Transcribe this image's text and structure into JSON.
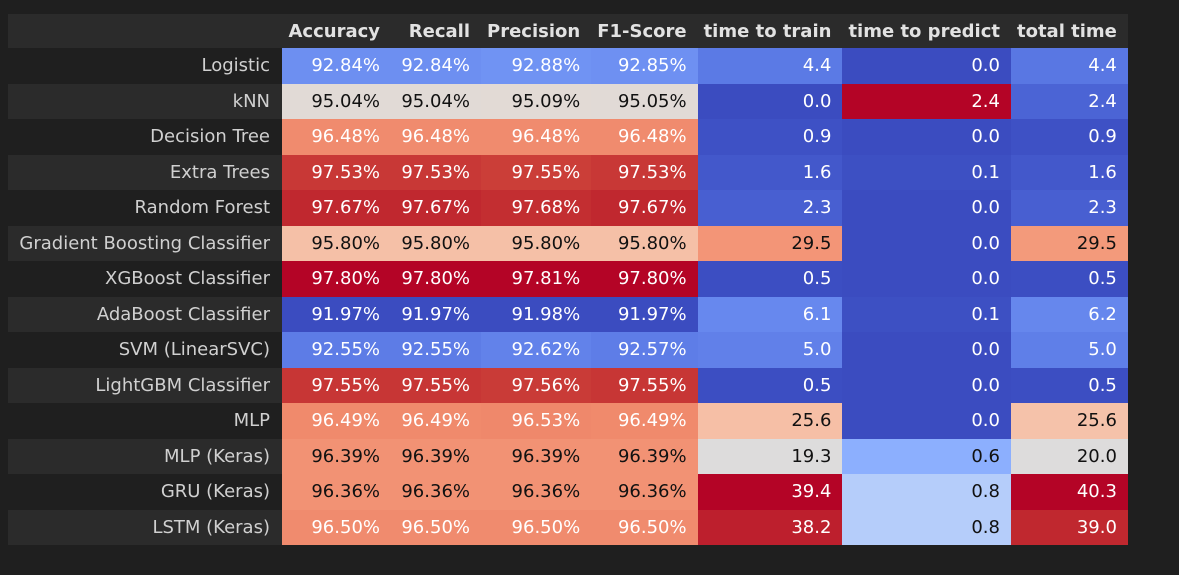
{
  "table": {
    "columns": [
      "Accuracy",
      "Recall",
      "Precision",
      "F1-Score",
      "time to train",
      "time to predict",
      "total time"
    ],
    "rows": [
      {
        "label": "Logistic",
        "cells": [
          {
            "text": "92.84%",
            "bg": "#6d8ff1",
            "fg": "dark"
          },
          {
            "text": "92.84%",
            "bg": "#6d8ff1",
            "fg": "dark"
          },
          {
            "text": "92.88%",
            "bg": "#7093f3",
            "fg": "dark"
          },
          {
            "text": "92.85%",
            "bg": "#6e90f2",
            "fg": "dark"
          },
          {
            "text": "4.4",
            "bg": "#5b7ae5",
            "fg": "dark"
          },
          {
            "text": "0.0",
            "bg": "#3b4cc0",
            "fg": "dark"
          },
          {
            "text": "4.4",
            "bg": "#5977e3",
            "fg": "dark"
          }
        ]
      },
      {
        "label": "kNN",
        "cells": [
          {
            "text": "95.04%",
            "bg": "#e1dad6",
            "fg": "light"
          },
          {
            "text": "95.04%",
            "bg": "#e1dad6",
            "fg": "light"
          },
          {
            "text": "95.09%",
            "bg": "#e2dad5",
            "fg": "light"
          },
          {
            "text": "95.05%",
            "bg": "#e1dad6",
            "fg": "light"
          },
          {
            "text": "0.0",
            "bg": "#3b4cc0",
            "fg": "dark"
          },
          {
            "text": "2.4",
            "bg": "#b40426",
            "fg": "dark"
          },
          {
            "text": "2.4",
            "bg": "#4b64d5",
            "fg": "dark"
          }
        ]
      },
      {
        "label": "Decision Tree",
        "cells": [
          {
            "text": "96.48%",
            "bg": "#f08b6e",
            "fg": "dark"
          },
          {
            "text": "96.48%",
            "bg": "#f08b6e",
            "fg": "dark"
          },
          {
            "text": "96.48%",
            "bg": "#f08b6e",
            "fg": "dark"
          },
          {
            "text": "96.48%",
            "bg": "#f08b6e",
            "fg": "dark"
          },
          {
            "text": "0.9",
            "bg": "#3e51c5",
            "fg": "dark"
          },
          {
            "text": "0.0",
            "bg": "#3b4cc0",
            "fg": "dark"
          },
          {
            "text": "0.9",
            "bg": "#3e51c5",
            "fg": "dark"
          }
        ]
      },
      {
        "label": "Extra Trees",
        "cells": [
          {
            "text": "97.53%",
            "bg": "#c83836",
            "fg": "dark"
          },
          {
            "text": "97.53%",
            "bg": "#c83836",
            "fg": "dark"
          },
          {
            "text": "97.55%",
            "bg": "#cb3e38",
            "fg": "dark"
          },
          {
            "text": "97.53%",
            "bg": "#c83836",
            "fg": "dark"
          },
          {
            "text": "1.6",
            "bg": "#4358cb",
            "fg": "dark"
          },
          {
            "text": "0.1",
            "bg": "#3d50c3",
            "fg": "dark"
          },
          {
            "text": "1.6",
            "bg": "#4358cb",
            "fg": "dark"
          }
        ]
      },
      {
        "label": "Random Forest",
        "cells": [
          {
            "text": "97.67%",
            "bg": "#c0282f",
            "fg": "dark"
          },
          {
            "text": "97.67%",
            "bg": "#c0282f",
            "fg": "dark"
          },
          {
            "text": "97.68%",
            "bg": "#c32e31",
            "fg": "dark"
          },
          {
            "text": "97.67%",
            "bg": "#c0282f",
            "fg": "dark"
          },
          {
            "text": "2.3",
            "bg": "#485fd1",
            "fg": "dark"
          },
          {
            "text": "0.0",
            "bg": "#3b4cc0",
            "fg": "dark"
          },
          {
            "text": "2.3",
            "bg": "#485fd1",
            "fg": "dark"
          }
        ]
      },
      {
        "label": "Gradient Boosting Classifier",
        "cells": [
          {
            "text": "95.80%",
            "bg": "#f5c0a7",
            "fg": "light"
          },
          {
            "text": "95.80%",
            "bg": "#f5c0a7",
            "fg": "light"
          },
          {
            "text": "95.80%",
            "bg": "#f5c0a7",
            "fg": "light"
          },
          {
            "text": "95.80%",
            "bg": "#f5c0a7",
            "fg": "light"
          },
          {
            "text": "29.5",
            "bg": "#f39577",
            "fg": "light"
          },
          {
            "text": "0.0",
            "bg": "#3b4cc0",
            "fg": "dark"
          },
          {
            "text": "29.5",
            "bg": "#f39a7b",
            "fg": "light"
          }
        ]
      },
      {
        "label": "XGBoost Classifier",
        "cells": [
          {
            "text": "97.80%",
            "bg": "#b40426",
            "fg": "dark"
          },
          {
            "text": "97.80%",
            "bg": "#b40426",
            "fg": "dark"
          },
          {
            "text": "97.81%",
            "bg": "#b40426",
            "fg": "dark"
          },
          {
            "text": "97.80%",
            "bg": "#b40426",
            "fg": "dark"
          },
          {
            "text": "0.5",
            "bg": "#3c4ec2",
            "fg": "dark"
          },
          {
            "text": "0.0",
            "bg": "#3b4cc0",
            "fg": "dark"
          },
          {
            "text": "0.5",
            "bg": "#3c4ec2",
            "fg": "dark"
          }
        ]
      },
      {
        "label": "AdaBoost Classifier",
        "cells": [
          {
            "text": "91.97%",
            "bg": "#3b4cc0",
            "fg": "dark"
          },
          {
            "text": "91.97%",
            "bg": "#3b4cc0",
            "fg": "dark"
          },
          {
            "text": "91.98%",
            "bg": "#3b4cc0",
            "fg": "dark"
          },
          {
            "text": "91.97%",
            "bg": "#3b4cc0",
            "fg": "dark"
          },
          {
            "text": "6.1",
            "bg": "#6788ee",
            "fg": "dark"
          },
          {
            "text": "0.1",
            "bg": "#3d50c3",
            "fg": "dark"
          },
          {
            "text": "6.2",
            "bg": "#6687ed",
            "fg": "dark"
          }
        ]
      },
      {
        "label": "SVM (LinearSVC)",
        "cells": [
          {
            "text": "92.55%",
            "bg": "#5d7ce6",
            "fg": "dark"
          },
          {
            "text": "92.55%",
            "bg": "#5d7ce6",
            "fg": "dark"
          },
          {
            "text": "92.62%",
            "bg": "#6282ea",
            "fg": "dark"
          },
          {
            "text": "92.57%",
            "bg": "#5e7de7",
            "fg": "dark"
          },
          {
            "text": "5.0",
            "bg": "#6180e9",
            "fg": "dark"
          },
          {
            "text": "0.0",
            "bg": "#3b4cc0",
            "fg": "dark"
          },
          {
            "text": "5.0",
            "bg": "#5f7fe8",
            "fg": "dark"
          }
        ]
      },
      {
        "label": "LightGBM Classifier",
        "cells": [
          {
            "text": "97.55%",
            "bg": "#c73635",
            "fg": "dark"
          },
          {
            "text": "97.55%",
            "bg": "#c73635",
            "fg": "dark"
          },
          {
            "text": "97.56%",
            "bg": "#c93b37",
            "fg": "dark"
          },
          {
            "text": "97.55%",
            "bg": "#c73635",
            "fg": "dark"
          },
          {
            "text": "0.5",
            "bg": "#3c4ec2",
            "fg": "dark"
          },
          {
            "text": "0.0",
            "bg": "#3b4cc0",
            "fg": "dark"
          },
          {
            "text": "0.5",
            "bg": "#3c4ec2",
            "fg": "dark"
          }
        ]
      },
      {
        "label": "MLP",
        "cells": [
          {
            "text": "96.49%",
            "bg": "#f08a6c",
            "fg": "dark"
          },
          {
            "text": "96.49%",
            "bg": "#f08a6c",
            "fg": "dark"
          },
          {
            "text": "96.53%",
            "bg": "#ef886b",
            "fg": "dark"
          },
          {
            "text": "96.49%",
            "bg": "#f08a6c",
            "fg": "dark"
          },
          {
            "text": "25.6",
            "bg": "#f6bfa6",
            "fg": "light"
          },
          {
            "text": "0.0",
            "bg": "#3b4cc0",
            "fg": "dark"
          },
          {
            "text": "25.6",
            "bg": "#f5c2aa",
            "fg": "light"
          }
        ]
      },
      {
        "label": "MLP (Keras)",
        "cells": [
          {
            "text": "96.39%",
            "bg": "#f29274",
            "fg": "light"
          },
          {
            "text": "96.39%",
            "bg": "#f29274",
            "fg": "light"
          },
          {
            "text": "96.39%",
            "bg": "#f29274",
            "fg": "light"
          },
          {
            "text": "96.39%",
            "bg": "#f29274",
            "fg": "light"
          },
          {
            "text": "19.3",
            "bg": "#dddcdc",
            "fg": "light"
          },
          {
            "text": "0.6",
            "bg": "#8caffe",
            "fg": "light"
          },
          {
            "text": "20.0",
            "bg": "#dddcdc",
            "fg": "light"
          }
        ]
      },
      {
        "label": "GRU (Keras)",
        "cells": [
          {
            "text": "96.36%",
            "bg": "#f29274",
            "fg": "light"
          },
          {
            "text": "96.36%",
            "bg": "#f29274",
            "fg": "light"
          },
          {
            "text": "96.36%",
            "bg": "#f29274",
            "fg": "light"
          },
          {
            "text": "96.36%",
            "bg": "#f29274",
            "fg": "light"
          },
          {
            "text": "39.4",
            "bg": "#b40426",
            "fg": "dark"
          },
          {
            "text": "0.8",
            "bg": "#b5cdfa",
            "fg": "light"
          },
          {
            "text": "40.3",
            "bg": "#b40426",
            "fg": "dark"
          }
        ]
      },
      {
        "label": "LSTM (Keras)",
        "cells": [
          {
            "text": "96.50%",
            "bg": "#f08b6e",
            "fg": "dark"
          },
          {
            "text": "96.50%",
            "bg": "#f08b6e",
            "fg": "dark"
          },
          {
            "text": "96.50%",
            "bg": "#f08b6e",
            "fg": "dark"
          },
          {
            "text": "96.50%",
            "bg": "#f08b6e",
            "fg": "dark"
          },
          {
            "text": "38.2",
            "bg": "#bd1f2d",
            "fg": "dark"
          },
          {
            "text": "0.8",
            "bg": "#b5cdfa",
            "fg": "light"
          },
          {
            "text": "39.0",
            "bg": "#c0282f",
            "fg": "dark"
          }
        ]
      }
    ]
  },
  "colors": {
    "page_background": "#1f1f1f",
    "header_background": "#2b2b2b",
    "row_label_alt_background": "#2b2b2b"
  }
}
